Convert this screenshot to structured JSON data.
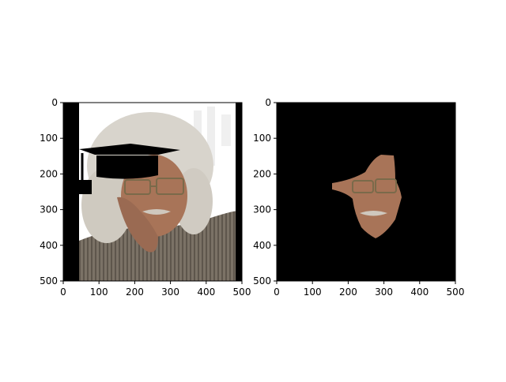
{
  "chart_data": [
    {
      "type": "image",
      "xlim": [
        0,
        500
      ],
      "ylim": [
        500,
        0
      ],
      "xticks": [
        0,
        100,
        200,
        300,
        400,
        500
      ],
      "yticks": [
        0,
        100,
        200,
        300,
        400,
        500
      ],
      "xtick_labels": [
        "0",
        "100",
        "200",
        "300",
        "400",
        "500"
      ],
      "ytick_labels": [
        "0",
        "100",
        "200",
        "300",
        "400",
        "500"
      ],
      "content": "portrait-with-graduation-cap-overlay",
      "colors": {
        "background": "#ffffff",
        "overlay": "#000000",
        "shirt": "#7a7064",
        "hair": "#d8d4cc",
        "skin": "#a87458"
      }
    },
    {
      "type": "image",
      "xlim": [
        0,
        500
      ],
      "ylim": [
        500,
        0
      ],
      "xticks": [
        0,
        100,
        200,
        300,
        400,
        500
      ],
      "yticks": [
        0,
        100,
        200,
        300,
        400,
        500
      ],
      "xtick_labels": [
        "0",
        "100",
        "200",
        "300",
        "400",
        "500"
      ],
      "ytick_labels": [
        "0",
        "100",
        "200",
        "300",
        "400",
        "500"
      ],
      "content": "masked-face-segment",
      "colors": {
        "background": "#000000",
        "skin": "#a87458"
      }
    }
  ]
}
